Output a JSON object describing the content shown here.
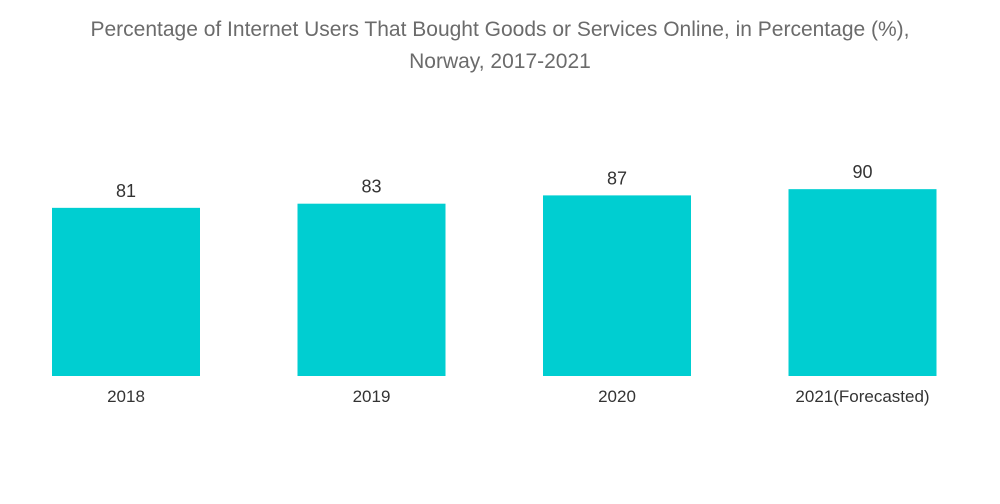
{
  "title_line1": "Percentage of Internet Users That Bought Goods or Services Online, in Percentage (%),",
  "title_line2": "Norway, 2017-2021",
  "colors": {
    "bar": "#00CED1",
    "text": "#333333",
    "title": "#6b6b6b"
  },
  "chart_data": {
    "type": "bar",
    "title": "Percentage of Internet Users That Bought Goods or Services Online, in Percentage (%), Norway, 2017-2021",
    "xlabel": "",
    "ylabel": "",
    "categories": [
      "2018",
      "2019",
      "2020",
      "2021(Forecasted)"
    ],
    "values": [
      81,
      83,
      87,
      90
    ],
    "grid": false,
    "legend": "none"
  }
}
